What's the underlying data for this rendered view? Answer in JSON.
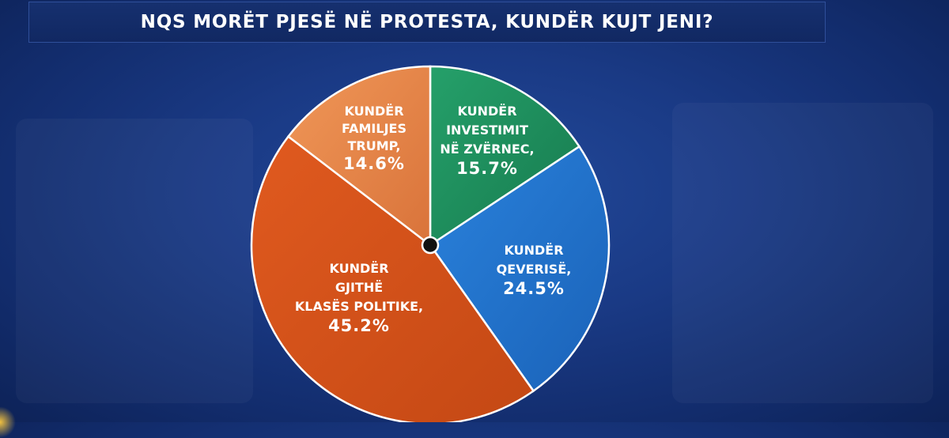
{
  "header": {
    "title": "NQS MORËT PJESË NË PROTESTA, KUNDËR KUJT JENI?"
  },
  "chart_data": {
    "type": "pie",
    "title": "NQS MORËT PJESË NË PROTESTA, KUNDËR KUJT JENI?",
    "slices": [
      {
        "label_lines": [
          "KUNDËR",
          "INVESTIMIT",
          "NË ZVËRNEC,"
        ],
        "value": 15.7,
        "value_label": "15.7%",
        "color": "#1e8a5b"
      },
      {
        "label_lines": [
          "KUNDËR",
          "QEVERISË,"
        ],
        "value": 24.5,
        "value_label": "24.5%",
        "color": "#1f6fc9"
      },
      {
        "label_lines": [
          "KUNDËR",
          "GJITHË",
          "KLASËS POLITIKE,"
        ],
        "value": 45.2,
        "value_label": "45.2%",
        "color": "#d4501a"
      },
      {
        "label_lines": [
          "KUNDËR",
          "FAMILJES",
          "TRUMP,"
        ],
        "value": 14.6,
        "value_label": "14.6%",
        "color": "#e8874a"
      }
    ]
  }
}
